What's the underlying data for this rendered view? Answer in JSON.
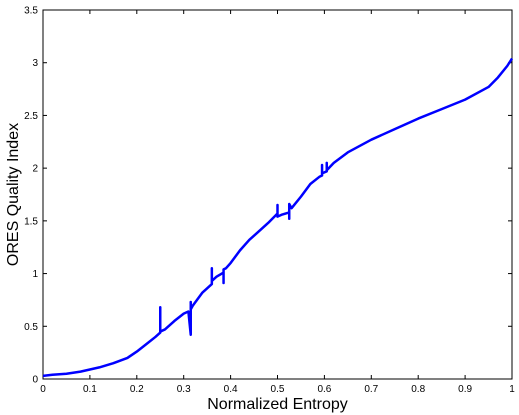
{
  "chart_data": {
    "type": "line",
    "title": "",
    "xlabel": "Normalized Entropy",
    "ylabel": "ORES Quality Index",
    "xlim": [
      0,
      1
    ],
    "ylim": [
      0,
      3.5
    ],
    "xticks": [
      0,
      0.1,
      0.2,
      0.3,
      0.4,
      0.5,
      0.6,
      0.7,
      0.8,
      0.9,
      1
    ],
    "xtick_labels": [
      "0",
      "0.1",
      "0.2",
      "0.3",
      "0.4",
      "0.5",
      "0.6",
      "0.7",
      "0.8",
      "0.9",
      "1"
    ],
    "yticks": [
      0,
      0.5,
      1,
      1.5,
      2,
      2.5,
      3,
      3.5
    ],
    "ytick_labels": [
      "0",
      "0.5",
      "1",
      "1.5",
      "2",
      "2.5",
      "3",
      "3.5"
    ],
    "grid": false,
    "series_color": "#0000ff",
    "series": [
      {
        "x": [
          0.0,
          0.02,
          0.05,
          0.08,
          0.1,
          0.12,
          0.15,
          0.18,
          0.2,
          0.22,
          0.24,
          0.25,
          0.25,
          0.25,
          0.26,
          0.28,
          0.3,
          0.31,
          0.315,
          0.315,
          0.315,
          0.32,
          0.34,
          0.36,
          0.36,
          0.36,
          0.37,
          0.385,
          0.385,
          0.385,
          0.39,
          0.4,
          0.42,
          0.44,
          0.46,
          0.48,
          0.5,
          0.5,
          0.5,
          0.51,
          0.525,
          0.525,
          0.525,
          0.53,
          0.55,
          0.57,
          0.59,
          0.595,
          0.595,
          0.595,
          0.605,
          0.605,
          0.605,
          0.62,
          0.65,
          0.7,
          0.75,
          0.8,
          0.85,
          0.9,
          0.95,
          0.97,
          0.99,
          1.0
        ],
        "y": [
          0.03,
          0.04,
          0.05,
          0.07,
          0.09,
          0.11,
          0.15,
          0.2,
          0.26,
          0.33,
          0.4,
          0.44,
          0.68,
          0.45,
          0.47,
          0.55,
          0.62,
          0.64,
          0.42,
          0.73,
          0.66,
          0.7,
          0.82,
          0.9,
          1.05,
          0.93,
          0.97,
          1.01,
          0.91,
          1.04,
          1.05,
          1.1,
          1.22,
          1.32,
          1.4,
          1.48,
          1.57,
          1.65,
          1.54,
          1.56,
          1.58,
          1.52,
          1.66,
          1.62,
          1.73,
          1.85,
          1.92,
          1.93,
          2.03,
          1.95,
          1.97,
          2.05,
          1.98,
          2.05,
          2.15,
          2.27,
          2.37,
          2.47,
          2.56,
          2.65,
          2.77,
          2.86,
          2.97,
          3.04
        ]
      }
    ]
  }
}
